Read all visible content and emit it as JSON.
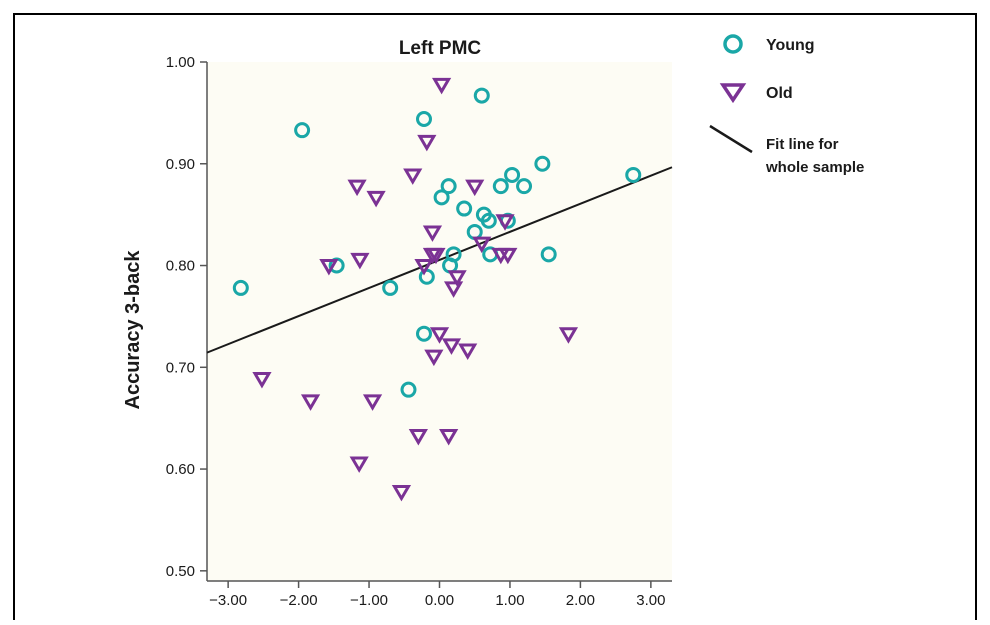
{
  "chart_data": {
    "type": "scatter",
    "title": "Left PMC",
    "xlabel": "",
    "ylabel": "Accuracy 3-back",
    "xlim": [
      -3.3,
      3.3
    ],
    "ylim": [
      0.49,
      1.0
    ],
    "xticks": [
      "-3.00",
      "-2.00",
      "-1.00",
      "0.00",
      "1.00",
      "2.00",
      "3.00"
    ],
    "xtick_values": [
      -3,
      -2,
      -1,
      0,
      1,
      2,
      3
    ],
    "yticks": [
      "0.50",
      "0.60",
      "0.70",
      "0.80",
      "0.90",
      "1.00"
    ],
    "ytick_values": [
      0.5,
      0.6,
      0.7,
      0.8,
      0.9,
      1.0
    ],
    "grid": false,
    "legend_position": "top-right",
    "series": [
      {
        "name": "Young",
        "marker": "open-circle",
        "color": "#1aa7a7",
        "points": [
          [
            -2.82,
            0.778
          ],
          [
            -1.95,
            0.933
          ],
          [
            -1.46,
            0.8
          ],
          [
            -0.7,
            0.778
          ],
          [
            -0.22,
            0.944
          ],
          [
            -0.18,
            0.789
          ],
          [
            -0.22,
            0.733
          ],
          [
            -0.44,
            0.678
          ],
          [
            0.03,
            0.867
          ],
          [
            0.13,
            0.878
          ],
          [
            0.35,
            0.856
          ],
          [
            0.5,
            0.833
          ],
          [
            0.6,
            0.967
          ],
          [
            0.63,
            0.85
          ],
          [
            0.7,
            0.844
          ],
          [
            0.72,
            0.811
          ],
          [
            0.87,
            0.878
          ],
          [
            0.97,
            0.844
          ],
          [
            1.03,
            0.889
          ],
          [
            1.2,
            0.878
          ],
          [
            1.46,
            0.9
          ],
          [
            1.55,
            0.811
          ],
          [
            2.75,
            0.889
          ],
          [
            0.2,
            0.811
          ],
          [
            0.15,
            0.8
          ]
        ]
      },
      {
        "name": "Old",
        "marker": "open-triangle-down",
        "color": "#7b3294",
        "points": [
          [
            0.03,
            0.978
          ],
          [
            -0.18,
            0.922
          ],
          [
            -0.38,
            0.889
          ],
          [
            -1.17,
            0.878
          ],
          [
            -0.9,
            0.867
          ],
          [
            0.5,
            0.878
          ],
          [
            -1.57,
            0.8
          ],
          [
            -1.13,
            0.806
          ],
          [
            -0.1,
            0.833
          ],
          [
            -0.1,
            0.811
          ],
          [
            -0.05,
            0.811
          ],
          [
            -0.22,
            0.8
          ],
          [
            0.25,
            0.789
          ],
          [
            0.2,
            0.778
          ],
          [
            0.6,
            0.822
          ],
          [
            0.87,
            0.811
          ],
          [
            0.97,
            0.811
          ],
          [
            0.93,
            0.844
          ],
          [
            1.83,
            0.733
          ],
          [
            0.0,
            0.733
          ],
          [
            0.17,
            0.722
          ],
          [
            0.4,
            0.717
          ],
          [
            -0.08,
            0.711
          ],
          [
            -2.52,
            0.689
          ],
          [
            -1.83,
            0.667
          ],
          [
            -0.95,
            0.667
          ],
          [
            -0.3,
            0.633
          ],
          [
            0.13,
            0.633
          ],
          [
            -1.14,
            0.606
          ],
          [
            -0.54,
            0.578
          ]
        ]
      }
    ],
    "fit_line": {
      "name": "Fit line for whole sample",
      "intercept": 0.8055,
      "slope": 0.0276,
      "color": "#1a1a1a"
    }
  }
}
